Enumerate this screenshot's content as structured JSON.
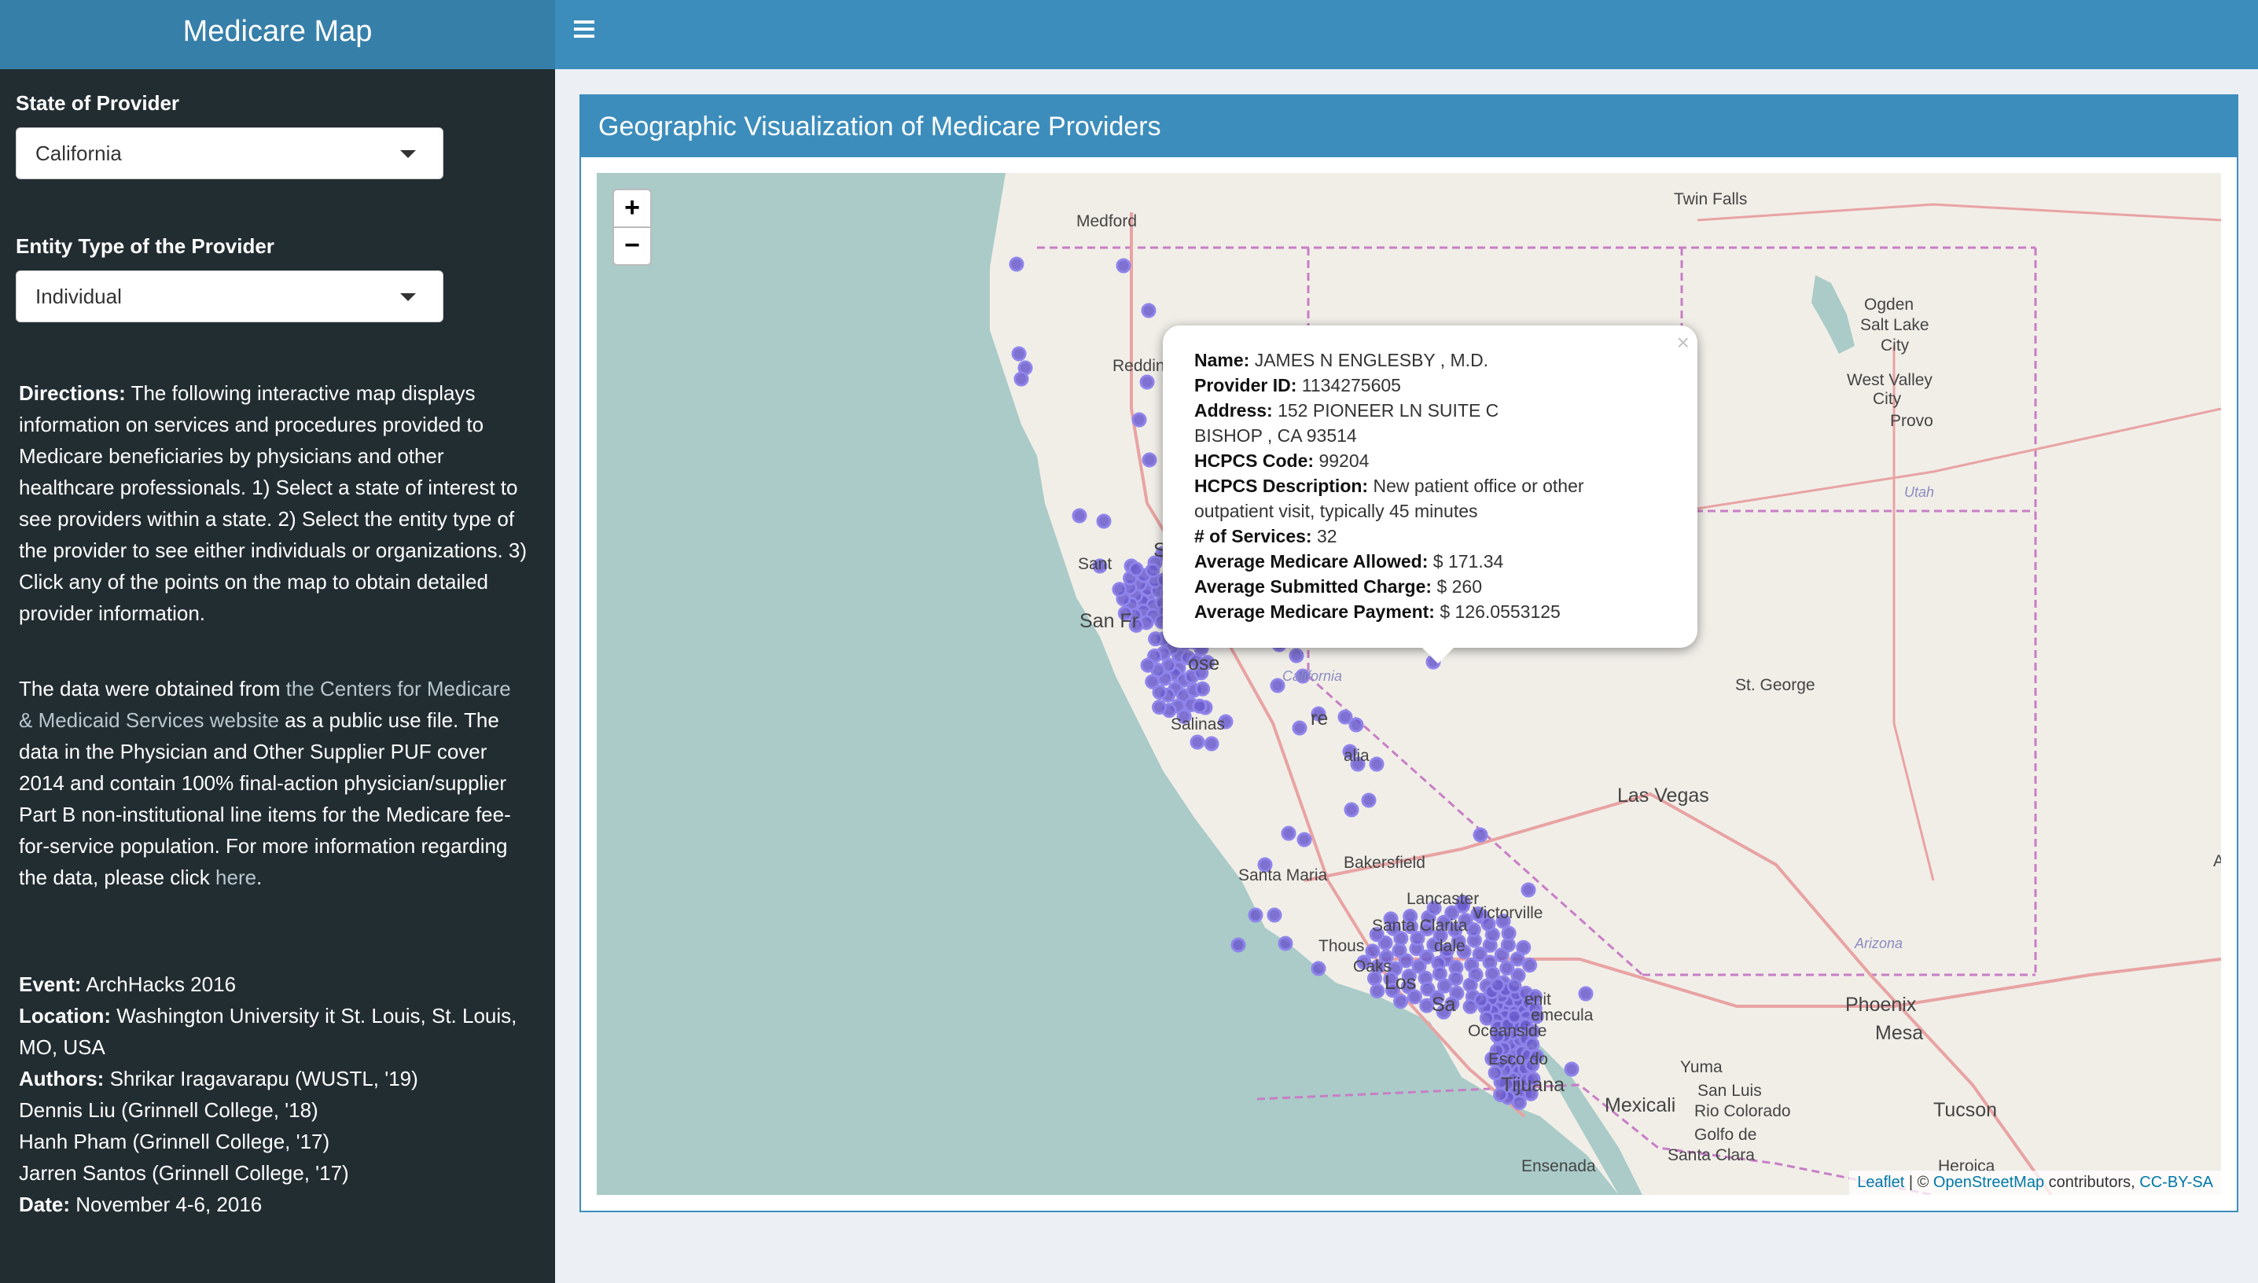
{
  "app": {
    "title": "Medicare Map"
  },
  "sidebar": {
    "state_label": "State of Provider",
    "state_value": "California",
    "entity_label": "Entity Type of the Provider",
    "entity_value": "Individual",
    "directions_label": "Directions:",
    "directions_text": "The following interactive map displays information on services and procedures provided to Medicare beneficiaries by physicians and other healthcare professionals. 1) Select a state of interest to see providers within a state. 2) Select the entity type of the provider to see either individuals or organizations. 3) Click any of the points on the map to obtain detailed provider information.",
    "data_text_prefix": "The data were obtained from ",
    "data_link_text": "the Centers for Medicare & Medicaid Services website",
    "data_text_middle": " as a public use file. The data in the Physician and Other Supplier PUF cover 2014 and contain 100% final-action physician/supplier Part B non-institutional line items for the Medicare fee-for-service population. For more information regarding the data, please click ",
    "data_here_link": "here",
    "data_text_suffix": ".",
    "event_label": "Event:",
    "event_value": "ArchHacks 2016",
    "location_label": "Location:",
    "location_value": "Washington University it St. Louis, St. Louis, MO, USA",
    "authors_label": "Authors:",
    "author_1": "Shrikar Iragavarapu (WUSTL, '19)",
    "author_2": "Dennis Liu (Grinnell College, '18)",
    "author_3": "Hanh Pham (Grinnell College, '17)",
    "author_4": "Jarren Santos (Grinnell College, '17)",
    "date_label": "Date:",
    "date_value": "November 4-6, 2016"
  },
  "box": {
    "title": "Geographic Visualization of Medicare Providers"
  },
  "map": {
    "zoom_in": "+",
    "zoom_out": "−",
    "point_color": "#6a5acd",
    "labels": {
      "medford": "Medford",
      "twin_falls": "Twin Falls",
      "ogden": "Ogden",
      "salt_lake": "Salt Lake",
      "city1": "City",
      "west_valley": "West Valley",
      "city2": "City",
      "provo": "Provo",
      "utah": "Utah",
      "redding": "Reddin",
      "santa": "Sant",
      "san_fr": "San Fr",
      "s": "S",
      "jose": "ose",
      "california": "California",
      "st_george": "St. George",
      "salinas": "Salinas",
      "fresno": "re",
      "visalia": "alia",
      "las_vegas": "Las Vegas",
      "bakersfield": "Bakersfield",
      "santa_maria": "Santa Maria",
      "lancaster": "Lancaster",
      "victorville": "Victorville",
      "santa_clarita": "Santa Clarita",
      "thousand": "Thous",
      "dale": "dale",
      "oaks": "Oaks",
      "los": "Los",
      "arizona": "Arizona",
      "phoenix": "Phoenix",
      "mesa": "Mesa",
      "sa": "Sa",
      "benito": "enit",
      "temecula": "emecula",
      "oceanside": "Oceanside",
      "escondido": "Esco   do",
      "yuma": "Yuma",
      "san_luis": "San Luis",
      "rio_colorado": "Rio Colorado",
      "golfo": "Golfo de",
      "santa_clara": "Santa Clara",
      "tijuana": "Tijuana",
      "mexicali": "Mexicali",
      "tucson": "Tucson",
      "ensenada": "Ensenada",
      "heroica": "Heroica",
      "a": "A"
    },
    "popup": {
      "close": "×",
      "name_label": "Name:",
      "name_value": "JAMES N ENGLESBY , M.D.",
      "provider_id_label": "Provider ID:",
      "provider_id_value": "1134275605",
      "address_label": "Address:",
      "address_line1": "152 PIONEER LN SUITE C",
      "address_line2": "BISHOP , CA 93514",
      "hcpcs_code_label": "HCPCS Code:",
      "hcpcs_code_value": "99204",
      "hcpcs_desc_label": "HCPCS Description:",
      "hcpcs_desc_value": "New patient office or other outpatient visit, typically 45 minutes",
      "services_label": "# of Services:",
      "services_value": "32",
      "allowed_label": "Average Medicare Allowed:",
      "allowed_value": "$ 171.34",
      "submitted_label": "Average Submitted Charge:",
      "submitted_value": "$ 260",
      "payment_label": "Average Medicare Payment:",
      "payment_value": "$ 126.0553125"
    },
    "attribution": {
      "leaflet": "Leaflet",
      "sep": " | © ",
      "osm": "OpenStreetMap",
      "contrib": " contributors, ",
      "license": "CC-BY-SA"
    }
  }
}
